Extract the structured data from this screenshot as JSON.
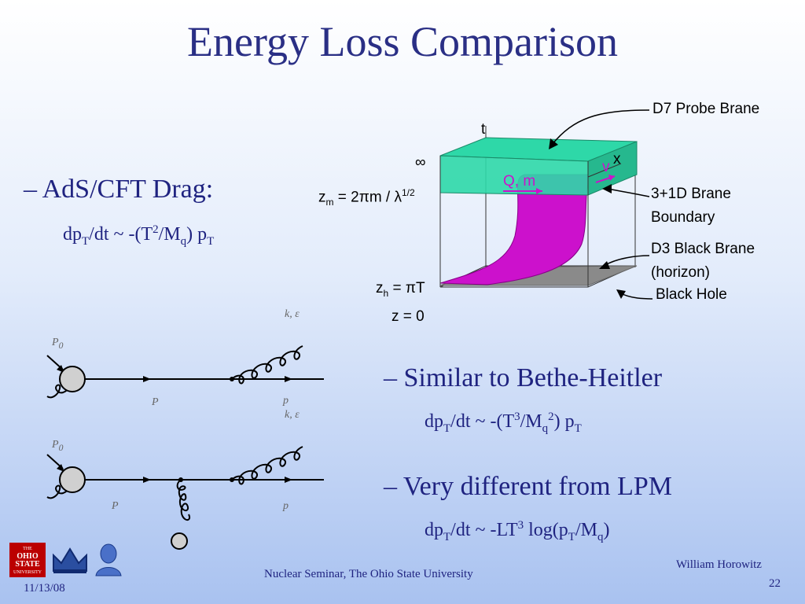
{
  "slide": {
    "title": "Energy Loss Comparison",
    "bullets": [
      {
        "dash": "–",
        "text": "AdS/CFT Drag:"
      },
      {
        "dash": "–",
        "text": "Similar to Bethe-Heitler"
      },
      {
        "dash": "–",
        "text": "Very different from LPM"
      }
    ],
    "formulas": {
      "drag": {
        "a": "dp",
        "b": "T",
        "c": "/dt ~ -(T",
        "d": "2",
        "e": "/M",
        "f": "q",
        "g": ") p",
        "h": "T"
      },
      "bh": {
        "a": "dp",
        "b": "T",
        "c": "/dt ~ -(T",
        "d": "3",
        "e": "/M",
        "f": "q",
        "g": "2",
        "h": ") p",
        "i": "T"
      },
      "lpm": {
        "a": "dp",
        "b": "T",
        "c": "/dt ~ -LT",
        "d": "3",
        "e": " log(p",
        "f": "T",
        "g": "/M",
        "h": "q",
        "i": ")"
      }
    }
  },
  "brane_diagram": {
    "t_axis": "t",
    "x_axis": "x",
    "v_label": "v",
    "quark_label": "Q, m",
    "infinity": "∞",
    "zm": {
      "a": "z",
      "b": "m",
      "c": " = 2πm / λ",
      "d": "1/2"
    },
    "zh": {
      "a": "z",
      "b": "h",
      "c": " = πT"
    },
    "z0": "z = 0",
    "callouts": {
      "d7": "D7 Probe Brane",
      "boundary_line1": "3+1D Brane",
      "boundary_line2": "Boundary",
      "d3_line1": "D3 Black Brane",
      "d3_line2": "(horizon)",
      "black_hole": "Black Hole"
    }
  },
  "feynman": {
    "top": {
      "p0": "P",
      "p0_sub": "0",
      "p": "P",
      "p_out": "p",
      "k": "k, ε"
    },
    "bottom": {
      "p0": "P",
      "p0_sub": "0",
      "p": "P",
      "p_out": "p",
      "k": "k, ε"
    }
  },
  "footer": {
    "date": "11/13/08",
    "center": "Nuclear Seminar, The Ohio State University",
    "author": "William Horowitz",
    "page": "22",
    "logo_line1": "THE",
    "logo_line2": "OHIO",
    "logo_line3": "STATE",
    "logo_line4": "UNIVERSITY"
  },
  "colors": {
    "text": "#1f2380",
    "title": "#2a2f85",
    "brane_green": "#2ed8a8",
    "string_magenta": "#cc11cc",
    "horizon_gray": "#8a8a8a",
    "osu_red": "#bb0000"
  }
}
